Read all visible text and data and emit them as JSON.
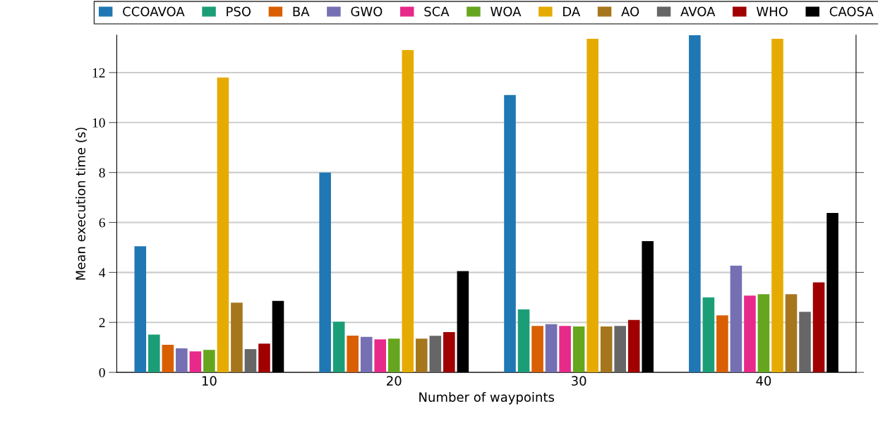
{
  "chart_data": {
    "type": "bar",
    "xlabel": "Number of waypoints",
    "ylabel": "Mean execution time (s)",
    "categories": [
      "10",
      "20",
      "30",
      "40"
    ],
    "series": [
      {
        "name": "CCOAVOA",
        "color": "#1f77b4",
        "values": [
          5.05,
          8.0,
          11.1,
          13.5
        ]
      },
      {
        "name": "PSO",
        "color": "#1b9e77",
        "values": [
          1.51,
          2.03,
          2.52,
          3.0
        ]
      },
      {
        "name": "BA",
        "color": "#d95f02",
        "values": [
          1.1,
          1.47,
          1.86,
          2.28
        ]
      },
      {
        "name": "GWO",
        "color": "#7570b3",
        "values": [
          0.96,
          1.42,
          1.93,
          4.27
        ]
      },
      {
        "name": "SCA",
        "color": "#e7298a",
        "values": [
          0.84,
          1.32,
          1.86,
          3.07
        ]
      },
      {
        "name": "WOA",
        "color": "#66a61e",
        "values": [
          0.9,
          1.35,
          1.84,
          3.13
        ]
      },
      {
        "name": "DA",
        "color": "#e6ab02",
        "values": [
          11.8,
          12.9,
          13.35,
          13.35
        ]
      },
      {
        "name": "AO",
        "color": "#a6761d",
        "values": [
          2.79,
          1.35,
          1.84,
          3.13
        ]
      },
      {
        "name": "AVOA",
        "color": "#666666",
        "values": [
          0.93,
          1.46,
          1.86,
          2.42
        ]
      },
      {
        "name": "WHO",
        "color": "#a00000",
        "values": [
          1.15,
          1.61,
          2.1,
          3.6
        ]
      },
      {
        "name": "CAOSA",
        "color": "#000000",
        "values": [
          2.86,
          4.05,
          5.25,
          6.38
        ]
      }
    ],
    "ylim": [
      0,
      13.5
    ],
    "yticks": [
      0,
      2,
      4,
      6,
      8,
      10,
      12
    ],
    "grid": "y",
    "legend": "top"
  }
}
